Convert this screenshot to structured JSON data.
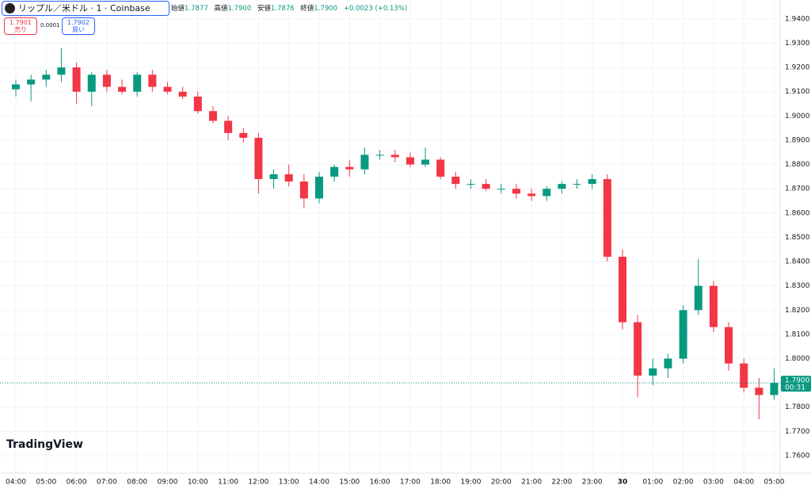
{
  "header": {
    "symbol": "リップル／米ドル · 1 · Coinbase",
    "ohlc": [
      {
        "label": "始値",
        "value": "1.7877"
      },
      {
        "label": "高値",
        "value": "1.7900"
      },
      {
        "label": "安値",
        "value": "1.7876"
      },
      {
        "label": "終値",
        "value": "1.7900"
      }
    ],
    "change": "+0.0023 (+0.13%)"
  },
  "trade": {
    "sell_price": "1.7901",
    "sell_label": "売り",
    "spread": "0.0001",
    "buy_price": "1.7902",
    "buy_label": "買い"
  },
  "logo": "TradingView",
  "chart_data": {
    "type": "candlestick",
    "up_color": "#089981",
    "down_color": "#f23645",
    "grid": true,
    "categories": [
      "04:00",
      null,
      "05:00",
      null,
      "06:00",
      null,
      "07:00",
      null,
      "08:00",
      null,
      "09:00",
      null,
      "10:00",
      null,
      "11:00",
      null,
      "12:00",
      null,
      "13:00",
      null,
      "14:00",
      null,
      "15:00",
      null,
      "16:00",
      null,
      "17:00",
      null,
      "18:00",
      null,
      "19:00",
      null,
      "20:00",
      null,
      "21:00",
      null,
      "22:00",
      null,
      "23:00",
      null,
      "30",
      null,
      "01:00",
      null,
      "02:00",
      null,
      "03:00",
      null,
      "04:00",
      null,
      "05:00"
    ],
    "open": [
      1.911,
      1.913,
      1.915,
      1.917,
      1.92,
      1.91,
      1.917,
      1.912,
      1.91,
      1.917,
      1.912,
      1.91,
      1.908,
      1.902,
      1.898,
      1.893,
      1.891,
      1.874,
      1.876,
      1.873,
      1.866,
      1.875,
      1.879,
      1.878,
      1.884,
      1.884,
      1.883,
      1.88,
      1.882,
      1.875,
      1.872,
      1.872,
      1.87,
      1.87,
      1.868,
      1.867,
      1.87,
      1.872,
      1.872,
      1.874,
      1.842,
      1.815,
      1.793,
      1.796,
      1.8,
      1.82,
      1.83,
      1.813,
      1.798,
      1.788,
      1.785
    ],
    "high": [
      1.915,
      1.917,
      1.919,
      1.928,
      1.922,
      1.918,
      1.919,
      1.915,
      1.918,
      1.919,
      1.914,
      1.912,
      1.91,
      1.904,
      1.9,
      1.895,
      1.893,
      1.878,
      1.88,
      1.876,
      1.877,
      1.88,
      1.882,
      1.887,
      1.886,
      1.886,
      1.885,
      1.887,
      1.883,
      1.877,
      1.874,
      1.874,
      1.872,
      1.872,
      1.87,
      1.871,
      1.873,
      1.874,
      1.876,
      1.876,
      1.845,
      1.818,
      1.8,
      1.802,
      1.822,
      1.841,
      1.832,
      1.815,
      1.8,
      1.792,
      1.796
    ],
    "low": [
      1.908,
      1.906,
      1.912,
      1.914,
      1.905,
      1.904,
      1.91,
      1.909,
      1.908,
      1.91,
      1.909,
      1.907,
      1.901,
      1.897,
      1.89,
      1.889,
      1.868,
      1.87,
      1.871,
      1.862,
      1.864,
      1.873,
      1.875,
      1.876,
      1.882,
      1.881,
      1.879,
      1.879,
      1.874,
      1.87,
      1.87,
      1.869,
      1.868,
      1.866,
      1.865,
      1.865,
      1.868,
      1.87,
      1.87,
      1.84,
      1.812,
      1.784,
      1.789,
      1.792,
      1.798,
      1.818,
      1.811,
      1.795,
      1.786,
      1.775,
      1.783
    ],
    "close": [
      1.913,
      1.915,
      1.917,
      1.92,
      1.91,
      1.917,
      1.912,
      1.91,
      1.917,
      1.912,
      1.91,
      1.908,
      1.902,
      1.898,
      1.893,
      1.891,
      1.874,
      1.876,
      1.873,
      1.866,
      1.875,
      1.879,
      1.878,
      1.884,
      1.884,
      1.883,
      1.88,
      1.882,
      1.875,
      1.872,
      1.872,
      1.87,
      1.87,
      1.868,
      1.867,
      1.87,
      1.872,
      1.872,
      1.874,
      1.842,
      1.815,
      1.793,
      1.796,
      1.8,
      1.82,
      1.83,
      1.813,
      1.798,
      1.788,
      1.785,
      1.79
    ],
    "ylim": [
      1.7528,
      1.9478
    ],
    "yticks": [
      {
        "value": 1.94,
        "label": "1.9400"
      },
      {
        "value": 1.93,
        "label": "1.9300"
      },
      {
        "value": 1.92,
        "label": "1.9200"
      },
      {
        "value": 1.91,
        "label": "1.9100"
      },
      {
        "value": 1.9,
        "label": "1.9000"
      },
      {
        "value": 1.89,
        "label": "1.8900"
      },
      {
        "value": 1.88,
        "label": "1.8800"
      },
      {
        "value": 1.87,
        "label": "1.8700"
      },
      {
        "value": 1.86,
        "label": "1.8600"
      },
      {
        "value": 1.85,
        "label": "1.8500"
      },
      {
        "value": 1.84,
        "label": "1.8400"
      },
      {
        "value": 1.83,
        "label": "1.8300"
      },
      {
        "value": 1.82,
        "label": "1.8200"
      },
      {
        "value": 1.81,
        "label": "1.8100"
      },
      {
        "value": 1.8,
        "label": "1.8000"
      },
      {
        "value": 1.79,
        "label": "1.7900"
      },
      {
        "value": 1.78,
        "label": "1.7800"
      },
      {
        "value": 1.77,
        "label": "1.7700"
      },
      {
        "value": 1.76,
        "label": "1.7600"
      }
    ],
    "last_price": {
      "value": 1.79,
      "label": "1.7900",
      "countdown": "00:31"
    }
  }
}
